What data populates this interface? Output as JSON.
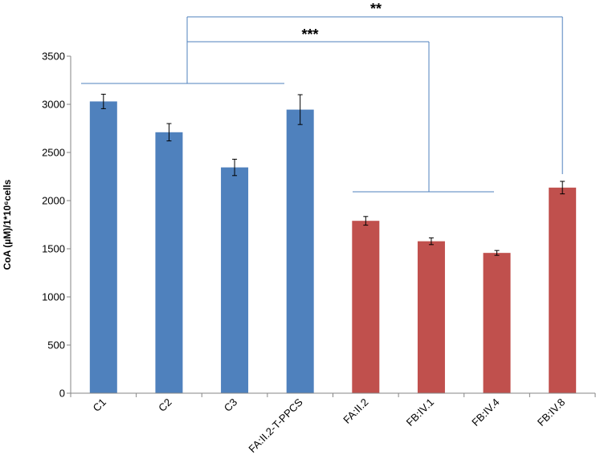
{
  "chart_data": {
    "type": "bar",
    "title": "",
    "xlabel": "",
    "ylabel": "CoA (µM)/1*10⁶cells",
    "ylim": [
      0,
      3500
    ],
    "yticks": [
      0,
      500,
      1000,
      1500,
      2000,
      2500,
      3000,
      3500
    ],
    "grid": false,
    "legend": "none",
    "categories": [
      "C1",
      "C2",
      "C3",
      "FA:II.2-T-PPCS",
      "FA:II.2",
      "FB:IV.1",
      "FB:IV.4",
      "FB:IV.8"
    ],
    "values": [
      3030,
      2710,
      2345,
      2945,
      1790,
      1578,
      1457,
      2135
    ],
    "errors": [
      75,
      90,
      85,
      155,
      45,
      35,
      25,
      65
    ],
    "bar_colors": [
      "#4f81bd",
      "#4f81bd",
      "#4f81bd",
      "#4f81bd",
      "#c0504d",
      "#c0504d",
      "#c0504d",
      "#c0504d"
    ],
    "annotations": [
      {
        "label": "***",
        "from_group": [
          "C1",
          "C2",
          "C3",
          "FA:II.2-T-PPCS"
        ],
        "to_group": [
          "FA:II.2",
          "FB:IV.1",
          "FB:IV.4"
        ]
      },
      {
        "label": "**",
        "from_group": [
          "C1",
          "C2",
          "C3",
          "FA:II.2-T-PPCS"
        ],
        "to_group": [
          "FB:IV.8"
        ]
      }
    ],
    "colors": {
      "control": "#4f81bd",
      "patient": "#c0504d",
      "bracket": "#4f81bd"
    }
  }
}
